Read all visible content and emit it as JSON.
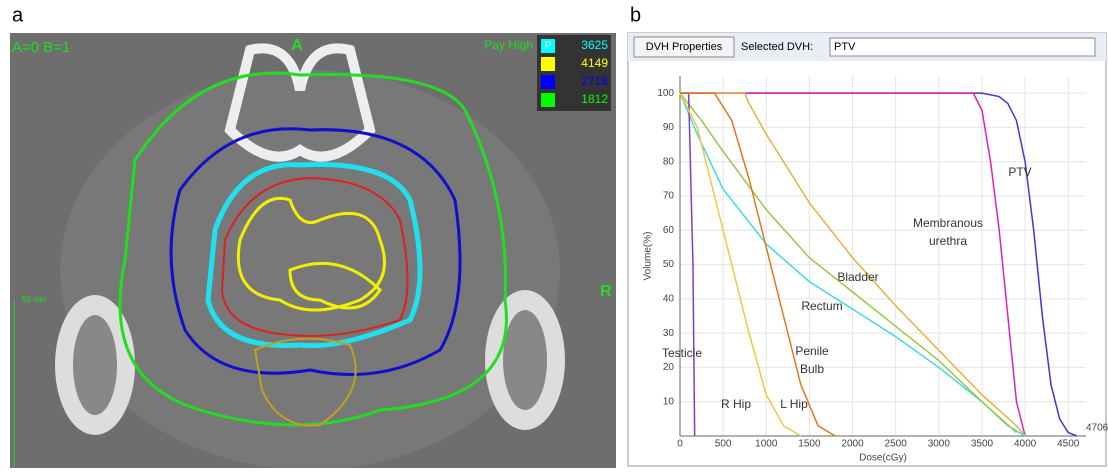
{
  "panel_labels": [
    "a",
    "b"
  ],
  "ct_image": {
    "overlay_text": "A=0 B=1",
    "top_label": "A",
    "right_label": "R",
    "dose_label": "Pay High",
    "scale_label": "50 mm",
    "legend": [
      {
        "label": "P",
        "value": 3625,
        "color": "#00ffff"
      },
      {
        "value": 4149,
        "color": "#ffff00"
      },
      {
        "value": 2718,
        "color": "#0000ff"
      },
      {
        "value": 1812,
        "color": "#00ff00"
      }
    ]
  },
  "dvh_toolbar": {
    "button": "DVH Properties",
    "selected_label": "Selected DVH:",
    "selected_value": "PTV"
  },
  "chart_data": {
    "type": "line",
    "xlabel": "Dose(cGy)",
    "ylabel": "Volume(%)",
    "xlim": [
      0,
      4706
    ],
    "ylim": [
      0,
      105
    ],
    "xticks": [
      0,
      500,
      1000,
      1500,
      2000,
      2500,
      3000,
      3500,
      4000,
      4500,
      4706
    ],
    "yticks": [
      10,
      20,
      30,
      40,
      50,
      60,
      70,
      80,
      90,
      100
    ],
    "grid": true,
    "series": [
      {
        "name": "PTV",
        "color": "#3a3ad0",
        "x": [
          0,
          3500,
          3700,
          3800,
          3900,
          4000,
          4100,
          4200,
          4300,
          4400,
          4500,
          4600
        ],
        "values": [
          100,
          100,
          99,
          97,
          92,
          80,
          60,
          35,
          15,
          5,
          1,
          0
        ]
      },
      {
        "name": "Membranous urethra",
        "color": "#e020c0",
        "x": [
          0,
          3400,
          3500,
          3600,
          3700,
          3800,
          3900,
          4000
        ],
        "values": [
          100,
          100,
          95,
          80,
          60,
          35,
          10,
          0
        ]
      },
      {
        "name": "Bladder",
        "color": "#e8b040",
        "x": [
          0,
          750,
          800,
          1000,
          1500,
          2000,
          2500,
          3000,
          3500,
          3900,
          4000
        ],
        "values": [
          100,
          100,
          97,
          88,
          68,
          52,
          38,
          25,
          12,
          3,
          0
        ]
      },
      {
        "name": "Rectum",
        "color": "#40d8e8",
        "x": [
          0,
          200,
          500,
          1000,
          1500,
          2000,
          2500,
          3000,
          3500,
          3800,
          4000
        ],
        "values": [
          100,
          88,
          72,
          56,
          45,
          37,
          29,
          20,
          10,
          3,
          0
        ]
      },
      {
        "name": "Penile Bulb",
        "color": "#98c848",
        "x": [
          0,
          250,
          500,
          1000,
          1500,
          2000,
          2500,
          3000,
          3500,
          3900
        ],
        "values": [
          100,
          92,
          83,
          66,
          52,
          42,
          32,
          22,
          10,
          1
        ]
      },
      {
        "name": "Testicle",
        "color": "#8040c0",
        "x": [
          0,
          100,
          150,
          170
        ],
        "values": [
          100,
          100,
          50,
          0
        ]
      },
      {
        "name": "R Hip",
        "color": "#f0c840",
        "x": [
          0,
          200,
          400,
          600,
          800,
          1000,
          1200,
          1400
        ],
        "values": [
          100,
          90,
          70,
          50,
          30,
          12,
          3,
          0
        ]
      },
      {
        "name": "L Hip",
        "color": "#e07820",
        "x": [
          0,
          400,
          600,
          800,
          1000,
          1200,
          1400,
          1600,
          1800
        ],
        "values": [
          100,
          100,
          92,
          75,
          55,
          35,
          15,
          3,
          0
        ]
      }
    ]
  }
}
